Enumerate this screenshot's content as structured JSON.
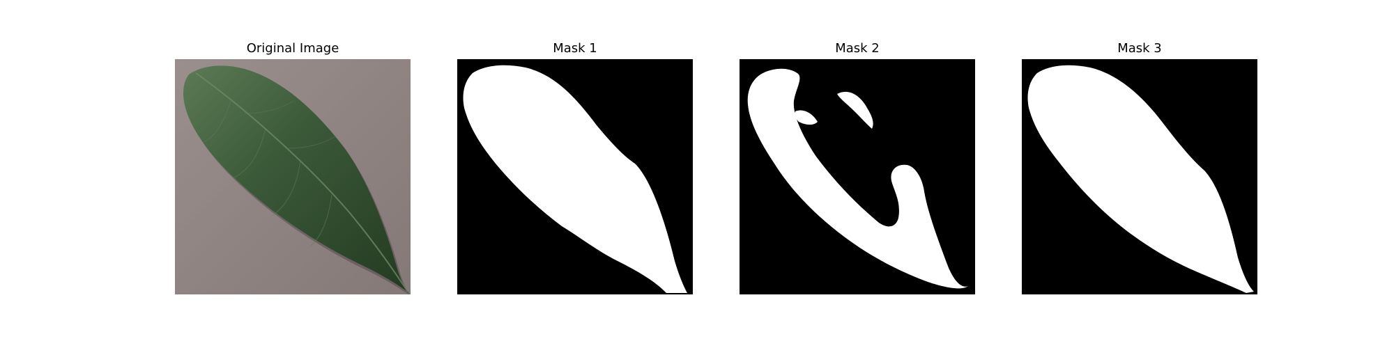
{
  "panels": [
    {
      "title": "Original Image",
      "image_type": "leaf-photo",
      "colors": {
        "background": "#8f8483",
        "leaf": "#2f4a2d",
        "leaf_highlight": "#53704b",
        "shadow": "#4a3f3f"
      }
    },
    {
      "title": "Mask 1",
      "image_type": "binary-mask",
      "colors": {
        "background": "#000000",
        "foreground": "#ffffff"
      }
    },
    {
      "title": "Mask 2",
      "image_type": "binary-mask",
      "colors": {
        "background": "#000000",
        "foreground": "#ffffff"
      }
    },
    {
      "title": "Mask 3",
      "image_type": "binary-mask",
      "colors": {
        "background": "#000000",
        "foreground": "#ffffff"
      }
    }
  ]
}
